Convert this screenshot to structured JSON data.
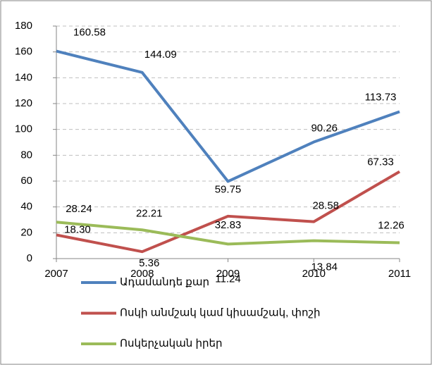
{
  "chart_data": {
    "type": "line",
    "categories": [
      "2007",
      "2008",
      "2009",
      "2010",
      "2011"
    ],
    "series": [
      {
        "name": "Ադամանդե քար",
        "color": "#4f81bd",
        "values": [
          160.58,
          144.09,
          59.75,
          90.26,
          113.73
        ],
        "value_labels": [
          "160.58",
          "144.09",
          "59.75",
          "90.26",
          "113.73"
        ]
      },
      {
        "name": "Ոսկի անմշակ կամ կիսամշակ, փոշի",
        "color": "#c0504d",
        "values": [
          18.3,
          5.36,
          32.83,
          28.58,
          67.33
        ],
        "value_labels": [
          "18.30",
          "5.36",
          "32.83",
          "28.58",
          "67.33"
        ]
      },
      {
        "name": "Ոսկերչական իրեր",
        "color": "#9bbb59",
        "values": [
          28.24,
          22.21,
          11.24,
          13.84,
          12.26
        ],
        "value_labels": [
          "28.24",
          "22.21",
          "11.24",
          "13.84",
          "12.26"
        ]
      }
    ],
    "ylim": [
      0,
      180
    ],
    "yticks": [
      0,
      20,
      40,
      60,
      80,
      100,
      120,
      140,
      160,
      180
    ],
    "grid": true,
    "legend": "bottom"
  }
}
